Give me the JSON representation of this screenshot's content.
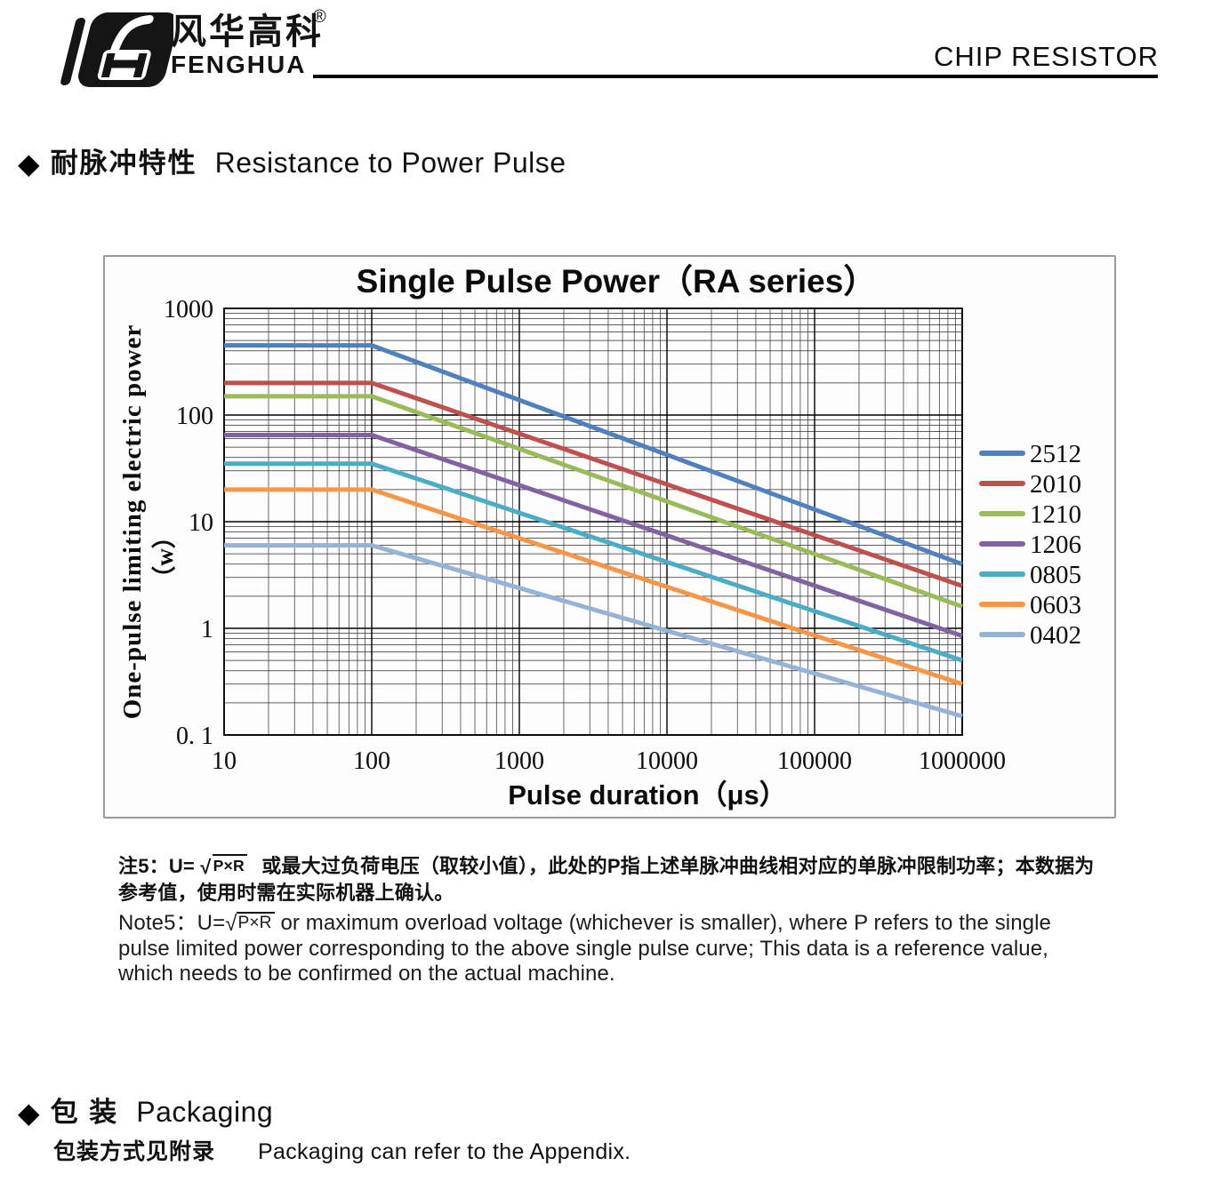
{
  "header": {
    "brand_cn": "风华高科",
    "brand_en": "FENGHUA",
    "registered_mark": "®",
    "doc_title": "CHIP RESISTOR"
  },
  "section_pulse": {
    "bullet": "◆",
    "title_cn": "耐脉冲特性",
    "title_en": "Resistance to Power Pulse"
  },
  "chart_data": {
    "type": "line",
    "title": "Single Pulse Power（RA series）",
    "xlabel": "Pulse duration（μs）",
    "ylabel": "One-pulse limiting electric power",
    "ylabel_unit": "（w）",
    "x_scale": "log",
    "y_scale": "log",
    "xlim": [
      10,
      1000000
    ],
    "ylim": [
      0.1,
      1000
    ],
    "x_ticks": [
      "10",
      "100",
      "1000",
      "10000",
      "100000",
      "1000000"
    ],
    "y_ticks": [
      "1000",
      "100",
      "10",
      "1",
      "0. 1"
    ],
    "grid": "log major + minor, dark lines",
    "legend_position": "right",
    "series": [
      {
        "name": "2512",
        "color": "#4F81BD",
        "points": [
          [
            10,
            450
          ],
          [
            100,
            450
          ],
          [
            1000000,
            4
          ]
        ]
      },
      {
        "name": "2010",
        "color": "#C0504D",
        "points": [
          [
            10,
            200
          ],
          [
            100,
            200
          ],
          [
            1000000,
            2.5
          ]
        ]
      },
      {
        "name": "1210",
        "color": "#9BBB59",
        "points": [
          [
            10,
            150
          ],
          [
            100,
            150
          ],
          [
            1000000,
            1.6
          ]
        ]
      },
      {
        "name": "1206",
        "color": "#8064A2",
        "points": [
          [
            10,
            65
          ],
          [
            100,
            65
          ],
          [
            1000000,
            0.85
          ]
        ]
      },
      {
        "name": "0805",
        "color": "#4BACC6",
        "points": [
          [
            10,
            35
          ],
          [
            100,
            35
          ],
          [
            1000000,
            0.5
          ]
        ]
      },
      {
        "name": "0603",
        "color": "#F79646",
        "points": [
          [
            10,
            20
          ],
          [
            100,
            20
          ],
          [
            1000000,
            0.3
          ]
        ]
      },
      {
        "name": "0402",
        "color": "#95B3D7",
        "points": [
          [
            10,
            6
          ],
          [
            100,
            6
          ],
          [
            1000000,
            0.15
          ]
        ]
      }
    ]
  },
  "notes": {
    "cn_prefix": "注5：U=",
    "cn_sqrt_sign": "√",
    "cn_sqrt": "P×R",
    "cn_rest": "或最大过负荷电压（取较小值），此处的P指上述单脉冲曲线相对应的单脉冲限制功率；本数据为参考值，使用时需在实际机器上确认。",
    "en_prefix": "Note5：U=",
    "en_sqrt_sign": "√",
    "en_sqrt": "P×R",
    "en_rest": "or maximum overload voltage (whichever is smaller), where P refers to the single pulse limited power corresponding to the above single pulse curve; This data is a reference value, which needs to be confirmed on the actual machine."
  },
  "packaging": {
    "bullet": "◆",
    "title_cn": "包 装",
    "title_en": "Packaging",
    "body_cn": "包装方式见附录",
    "body_en": "Packaging can refer to the Appendix."
  }
}
